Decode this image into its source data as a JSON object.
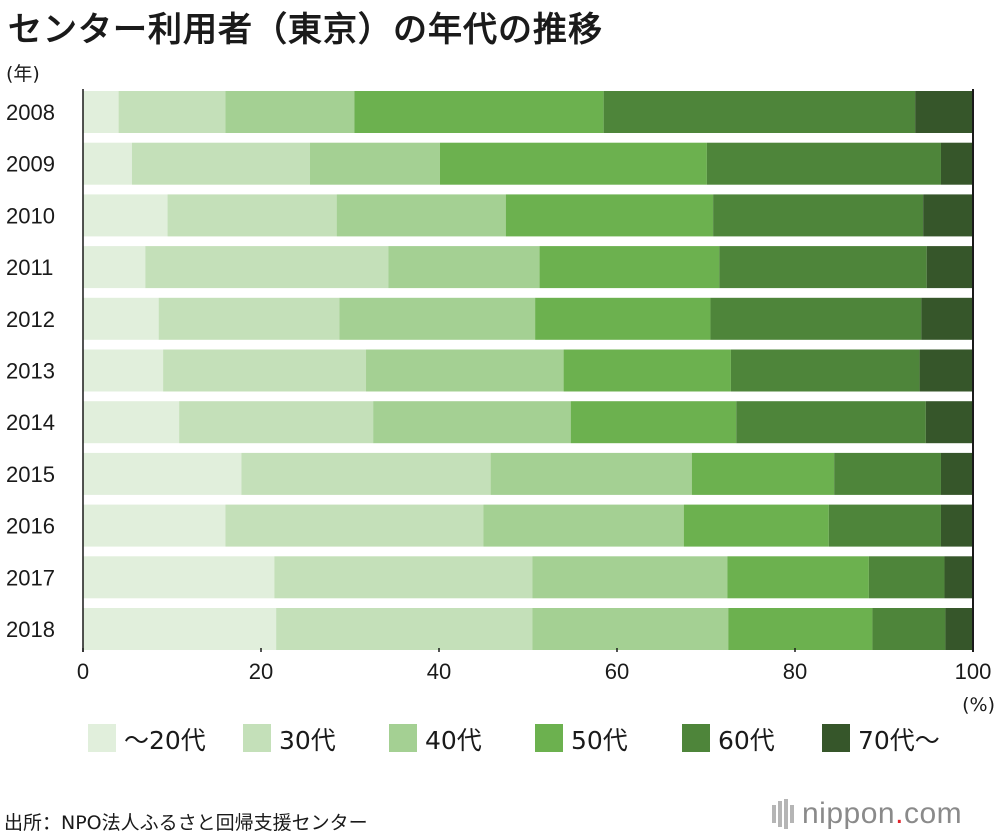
{
  "title": "センター利用者（東京）の年代の推移",
  "source": "出所：NPO法人ふるさと回帰支援センター",
  "brand": {
    "name": "nippon",
    "dot": ".",
    "tld": "com"
  },
  "colors": [
    "#e1efdc",
    "#c4e0b9",
    "#a4d093",
    "#6cb14f",
    "#4e853a",
    "#36562a"
  ],
  "chart_data": {
    "type": "bar",
    "orientation": "horizontal",
    "stacked": true,
    "title": "センター利用者（東京）の年代の推移",
    "ylabel": "(年)",
    "xlabel": "(%)",
    "xlim": [
      0,
      100
    ],
    "xticks": [
      0,
      20,
      40,
      60,
      80,
      100
    ],
    "legend_position": "bottom",
    "categories": [
      "2008",
      "2009",
      "2010",
      "2011",
      "2012",
      "2013",
      "2014",
      "2015",
      "2016",
      "2017",
      "2018"
    ],
    "series": [
      {
        "name": "〜20代",
        "values": [
          4.0,
          5.5,
          9.5,
          7.0,
          8.5,
          9.0,
          10.8,
          17.8,
          16.0,
          21.5,
          21.7
        ]
      },
      {
        "name": "30代",
        "values": [
          12.0,
          20.0,
          19.0,
          27.3,
          20.3,
          22.8,
          21.8,
          28.0,
          29.0,
          29.0,
          28.8
        ]
      },
      {
        "name": "40代",
        "values": [
          14.5,
          14.6,
          19.0,
          17.0,
          22.0,
          22.2,
          22.2,
          22.6,
          22.5,
          21.9,
          22.0
        ]
      },
      {
        "name": "50代",
        "values": [
          28.0,
          30.0,
          23.3,
          20.2,
          19.7,
          18.8,
          18.6,
          16.0,
          16.3,
          15.9,
          16.2
        ]
      },
      {
        "name": "60代",
        "values": [
          35.0,
          26.3,
          23.6,
          23.3,
          23.7,
          21.2,
          21.3,
          12.0,
          12.6,
          8.5,
          8.2
        ]
      },
      {
        "name": "70代〜",
        "values": [
          6.5,
          3.6,
          5.6,
          5.2,
          5.8,
          6.0,
          5.3,
          3.6,
          3.6,
          3.2,
          3.1
        ]
      }
    ]
  }
}
